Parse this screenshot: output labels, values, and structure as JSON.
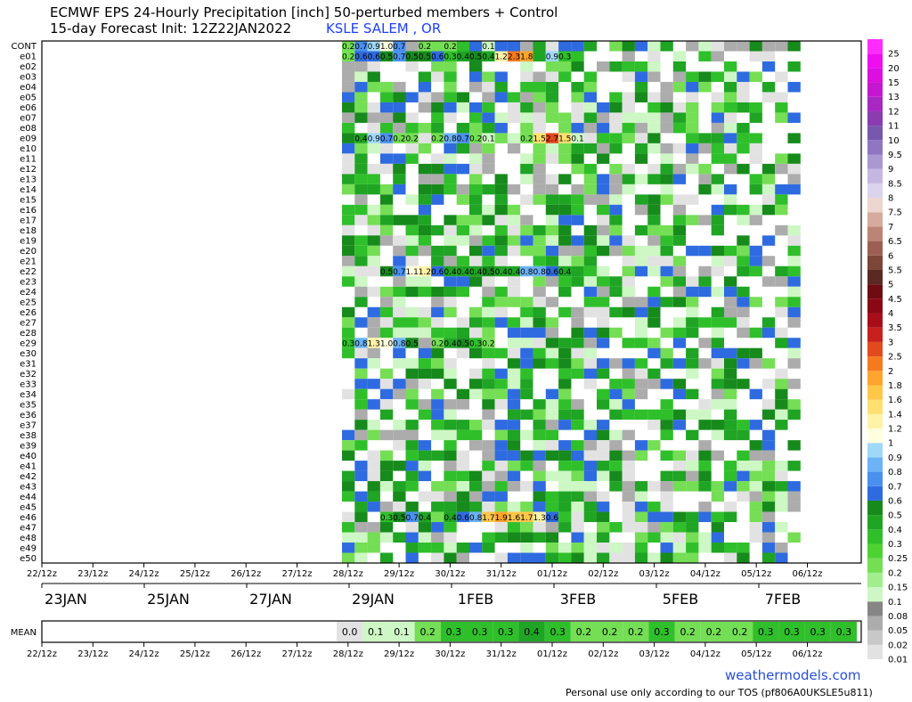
{
  "header": {
    "title": "ECMWF EPS 24-Hourly Precipitation [inch]  50-perturbed members + Control",
    "subtitle": "15-day Forecast Init: 12Z22JAN2022",
    "station": "KSLE SALEM        , OR"
  },
  "footer": {
    "site": "weathermodels.com",
    "tos": "Personal use only according to our TOS (pf806A0UKSLE5u811)"
  },
  "chart_data": {
    "type": "heatmap",
    "units": "inch",
    "x_ticks": [
      "22/12z",
      "23/12z",
      "24/12z",
      "25/12z",
      "26/12z",
      "27/12z",
      "28/12z",
      "29/12z",
      "30/12z",
      "31/12z",
      "01/12z",
      "02/12z",
      "03/12z",
      "04/12z",
      "05/12z",
      "06/12z"
    ],
    "date_labels": [
      "23JAN",
      "25JAN",
      "27JAN",
      "29JAN",
      "1FEB",
      "3FEB",
      "5FEB",
      "7FEB"
    ],
    "members": [
      "CONT",
      "e01",
      "e02",
      "e03",
      "e04",
      "e05",
      "e06",
      "e07",
      "e08",
      "e09",
      "e10",
      "e11",
      "e12",
      "e13",
      "e14",
      "e15",
      "e16",
      "e17",
      "e18",
      "e19",
      "e20",
      "e21",
      "e22",
      "e23",
      "e24",
      "e25",
      "e26",
      "e27",
      "e28",
      "e29",
      "e30",
      "e31",
      "e32",
      "e33",
      "e34",
      "e35",
      "e36",
      "e37",
      "e38",
      "e39",
      "e40",
      "e41",
      "e42",
      "e43",
      "e44",
      "e45",
      "e46",
      "e47",
      "e48",
      "e49",
      "e50"
    ],
    "labeled_cells": {
      "CONT": {
        "0": 0.2,
        "1": 0.7,
        "2": 0.9,
        "3": 1.0,
        "4": 0.7,
        "6": 0.2,
        "8": 0.2,
        "11": 0.1
      },
      "e01": {
        "0": 0.2,
        "1": 0.6,
        "2": 0.6,
        "3": 0.5,
        "4": 0.7,
        "5": 0.5,
        "6": 0.5,
        "7": 0.6,
        "8": 0.3,
        "9": 0.4,
        "10": 0.5,
        "11": 0.4,
        "12": 1.2,
        "13": 2.3,
        "14": 1.8,
        "16": 0.9,
        "17": 0.3
      },
      "e09": {
        "1": 0.4,
        "2": 0.9,
        "3": 0.7,
        "4": 0.2,
        "5": 0.2,
        "7": 0.2,
        "8": 0.8,
        "9": 0.7,
        "10": 0.2,
        "11": 0.1,
        "14": 0.2,
        "15": 1.5,
        "16": 2.7,
        "17": 1.5,
        "18": 0.1
      },
      "e22": {
        "3": 0.5,
        "4": 0.7,
        "5": 1.1,
        "6": 1.2,
        "7": 0.6,
        "8": 0.4,
        "9": 0.4,
        "10": 0.4,
        "11": 0.5,
        "12": 0.4,
        "13": 0.4,
        "14": 0.8,
        "15": 0.8,
        "16": 0.6,
        "17": 0.4
      },
      "e29": {
        "0": 0.3,
        "1": 0.8,
        "2": 1.3,
        "3": 1.0,
        "4": 0.8,
        "5": 0.5,
        "7": 0.2,
        "8": 0.4,
        "9": 0.5,
        "10": 0.3,
        "11": 0.2
      },
      "e46": {
        "3": 0.3,
        "4": 0.5,
        "5": 0.7,
        "6": 0.4,
        "8": 0.4,
        "9": 0.6,
        "10": 0.8,
        "11": 1.7,
        "12": 1.9,
        "13": 1.6,
        "14": 1.7,
        "15": 1.3,
        "16": 0.6
      }
    },
    "mean_row_label": "MEAN",
    "mean_values": [
      0.0,
      0.1,
      0.1,
      0.2,
      0.3,
      0.3,
      0.3,
      0.4,
      0.3,
      0.2,
      0.2,
      0.2,
      0.3,
      0.2,
      0.2,
      0.2,
      0.3,
      0.3,
      0.3,
      0.3
    ],
    "colorbar": {
      "levels": [
        0.01,
        0.02,
        0.05,
        0.08,
        0.1,
        0.15,
        0.2,
        0.25,
        0.3,
        0.4,
        0.5,
        0.6,
        0.7,
        0.8,
        0.9,
        1,
        1.2,
        1.4,
        1.6,
        1.8,
        2,
        2.5,
        3,
        3.5,
        4,
        4.5,
        5,
        5.5,
        6,
        6.5,
        7,
        7.5,
        8,
        8.5,
        9,
        9.5,
        10,
        11,
        12,
        13,
        15,
        20,
        25
      ],
      "colors": [
        "#e2e2e2",
        "#c8c8c8",
        "#acacac",
        "#868686",
        "#cdf7c4",
        "#a2ee8e",
        "#74de54",
        "#4ed232",
        "#2fbf2a",
        "#1fa424",
        "#178a1c",
        "#2f6be0",
        "#4a90ee",
        "#6cb2f4",
        "#a0d8fa",
        "#ffffe0",
        "#fff3a8",
        "#ffe070",
        "#ffc648",
        "#ffa42e",
        "#f47a1e",
        "#e24a1e",
        "#c8201e",
        "#a80e18",
        "#8a0814",
        "#6e0c12",
        "#5a2a22",
        "#7c4638",
        "#9c6052",
        "#bc8474",
        "#d6aa9c",
        "#ecd6ce",
        "#dcd4ec",
        "#c4b8e0",
        "#aa98d2",
        "#9076c2",
        "#7858ae",
        "#8a3cb0",
        "#a828c2",
        "#c418d0",
        "#dc0ee0",
        "#ee0ef0",
        "#ff2cff"
      ]
    }
  }
}
